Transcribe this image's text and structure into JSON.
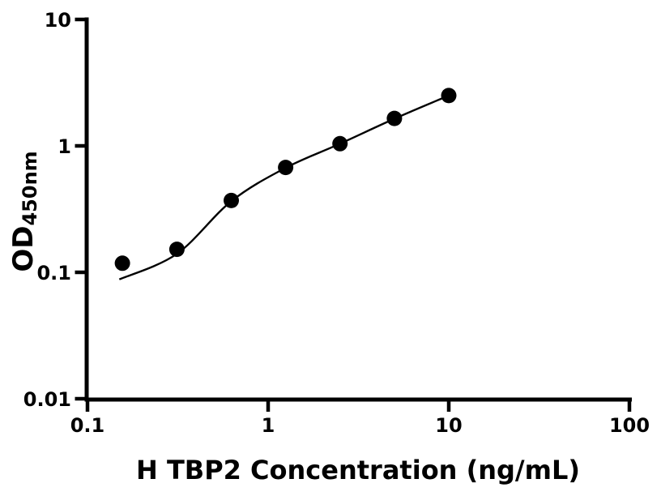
{
  "figure": {
    "background": "#ffffff",
    "foreground": "#000000"
  },
  "chart_data": {
    "type": "scatter",
    "title": "",
    "xlabel": "H TBP2 Concentration (ng/mL)",
    "ylabel_main": "OD",
    "ylabel_sub": "450nm",
    "x_scale": "log",
    "y_scale": "log",
    "xlim": [
      0.1,
      100
    ],
    "ylim": [
      0.01,
      10
    ],
    "x_ticks": [
      0.1,
      1,
      10,
      100
    ],
    "x_tick_labels": [
      "0.1",
      "1",
      "10",
      "100"
    ],
    "y_ticks": [
      10,
      1,
      0.1,
      0.01
    ],
    "y_tick_labels": [
      "10",
      "1",
      "0.1",
      "0.01"
    ],
    "grid": false,
    "legend": "none",
    "marker": "filled-circle",
    "marker_color": "#000000",
    "line_color": "#000000",
    "series": [
      {
        "name": "standard-points",
        "type": "scatter",
        "points": [
          {
            "x": 0.156,
            "y": 0.118
          },
          {
            "x": 0.3125,
            "y": 0.152
          },
          {
            "x": 0.625,
            "y": 0.37
          },
          {
            "x": 1.25,
            "y": 0.675
          },
          {
            "x": 2.5,
            "y": 1.04
          },
          {
            "x": 5,
            "y": 1.65
          },
          {
            "x": 10,
            "y": 2.5
          }
        ]
      },
      {
        "name": "fit-curve",
        "type": "line",
        "points": [
          {
            "x": 0.15,
            "y": 0.088
          },
          {
            "x": 0.3125,
            "y": 0.14
          },
          {
            "x": 0.625,
            "y": 0.365
          },
          {
            "x": 1.25,
            "y": 0.67
          },
          {
            "x": 2.5,
            "y": 1.04
          },
          {
            "x": 5,
            "y": 1.64
          },
          {
            "x": 10,
            "y": 2.5
          }
        ]
      }
    ]
  }
}
